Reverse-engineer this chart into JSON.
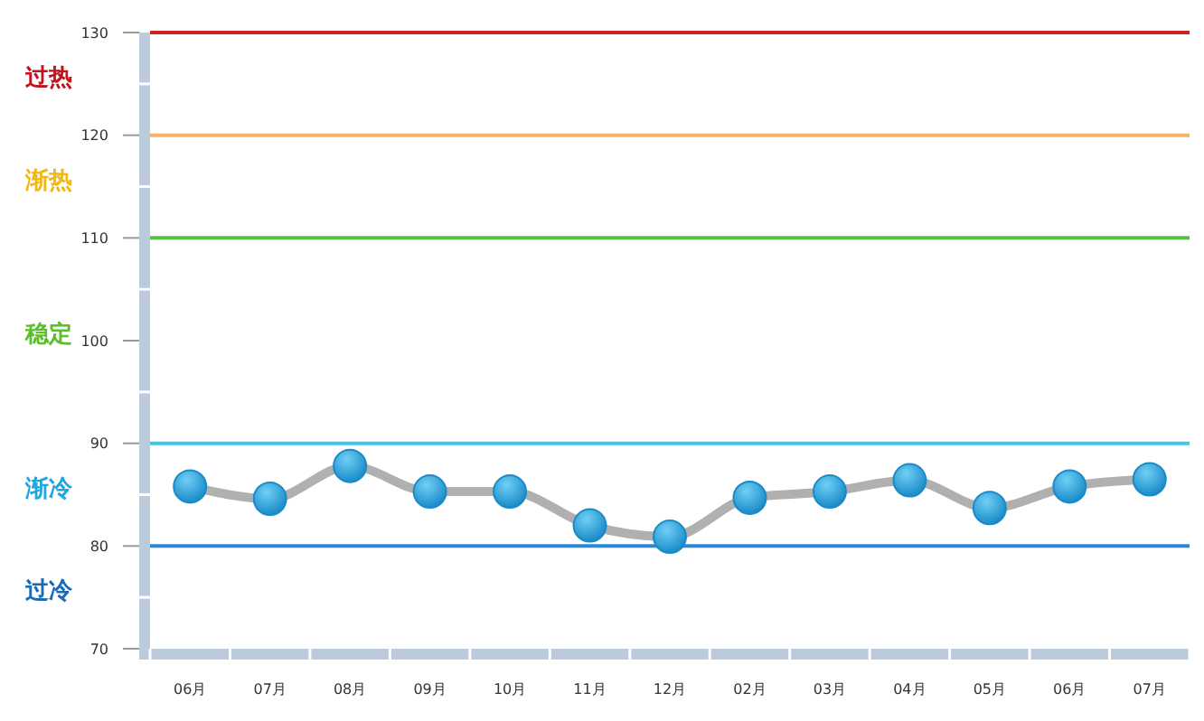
{
  "chart_data": {
    "type": "line",
    "categories": [
      "06月",
      "07月",
      "08月",
      "09月",
      "10月",
      "11月",
      "12月",
      "02月",
      "03月",
      "04月",
      "05月",
      "06月",
      "07月"
    ],
    "series": [
      {
        "color": "#1a8ac8",
        "values": [
          85.8,
          84.6,
          87.8,
          85.3,
          85.3,
          82.0,
          80.9,
          84.7,
          85.3,
          86.4,
          83.7,
          85.8,
          86.5
        ]
      }
    ],
    "ylim": [
      70,
      130
    ],
    "yticks": [
      70,
      80,
      90,
      100,
      110,
      120,
      130
    ],
    "marker": "circle",
    "grid": false,
    "ref_lines": [
      {
        "axis": "y",
        "value": 130,
        "color": "#cc2222"
      },
      {
        "axis": "y",
        "value": 120,
        "color": "#f7b267"
      },
      {
        "axis": "y",
        "value": 110,
        "color": "#55c040"
      },
      {
        "axis": "y",
        "value": 90,
        "color": "#3ec8e8"
      },
      {
        "axis": "y",
        "value": 80,
        "color": "#2a8ad8"
      }
    ],
    "annotations": [
      "过热",
      "渐热",
      "稳定",
      "渐冷",
      "过冷"
    ]
  }
}
